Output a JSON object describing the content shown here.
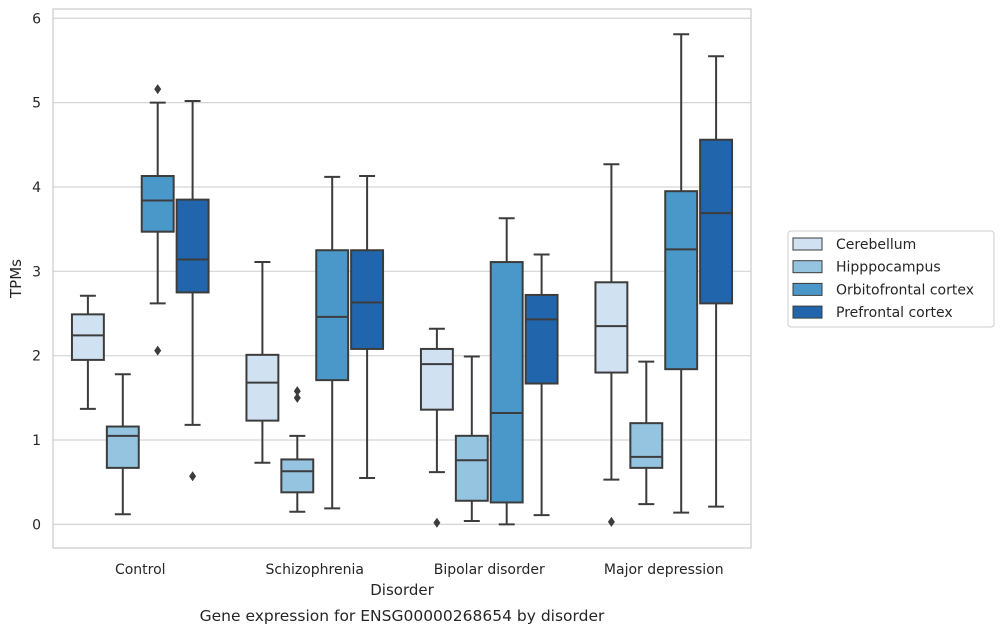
{
  "chart_data": {
    "type": "box",
    "xlabel": "Disorder",
    "ylabel": "TPMs",
    "ylim": [
      -0.28,
      6.11
    ],
    "yticks": [
      0,
      1,
      2,
      3,
      4,
      5,
      6
    ],
    "grid": "horizontal",
    "legend_position": "center-right, outside plot",
    "caption": "Gene expression for ENSG00000268654 by disorder",
    "categories": [
      "Control",
      "Schizophrenia",
      "Bipolar disorder",
      "Major depression"
    ],
    "series": [
      {
        "name": "Cerebellum",
        "color": "#d0e1f2",
        "boxes": [
          {
            "whisker_low": 1.37,
            "q1": 1.95,
            "median": 2.24,
            "q3": 2.49,
            "whisker_high": 2.71,
            "outliers": []
          },
          {
            "whisker_low": 0.73,
            "q1": 1.23,
            "median": 1.68,
            "q3": 2.01,
            "whisker_high": 3.11,
            "outliers": []
          },
          {
            "whisker_low": 0.62,
            "q1": 1.36,
            "median": 1.9,
            "q3": 2.08,
            "whisker_high": 2.32,
            "outliers": [
              0.02
            ]
          },
          {
            "whisker_low": 0.53,
            "q1": 1.8,
            "median": 2.35,
            "q3": 2.87,
            "whisker_high": 4.27,
            "outliers": [
              0.03
            ]
          }
        ]
      },
      {
        "name": "Hipppocampus",
        "color": "#94c4df",
        "boxes": [
          {
            "whisker_low": 0.12,
            "q1": 0.67,
            "median": 1.05,
            "q3": 1.16,
            "whisker_high": 1.78,
            "outliers": []
          },
          {
            "whisker_low": 0.15,
            "q1": 0.38,
            "median": 0.63,
            "q3": 0.77,
            "whisker_high": 1.05,
            "outliers": [
              1.5,
              1.58
            ]
          },
          {
            "whisker_low": 0.04,
            "q1": 0.28,
            "median": 0.76,
            "q3": 1.05,
            "whisker_high": 1.99,
            "outliers": []
          },
          {
            "whisker_low": 0.24,
            "q1": 0.67,
            "median": 0.8,
            "q3": 1.2,
            "whisker_high": 1.93,
            "outliers": []
          }
        ]
      },
      {
        "name": "Orbitofrontal cortex",
        "color": "#4a98c9",
        "boxes": [
          {
            "whisker_low": 2.62,
            "q1": 3.47,
            "median": 3.84,
            "q3": 4.13,
            "whisker_high": 5.0,
            "outliers": [
              2.06,
              5.16
            ]
          },
          {
            "whisker_low": 0.19,
            "q1": 1.71,
            "median": 2.46,
            "q3": 3.25,
            "whisker_high": 4.12,
            "outliers": []
          },
          {
            "whisker_low": 0.0,
            "q1": 0.26,
            "median": 1.32,
            "q3": 3.11,
            "whisker_high": 3.63,
            "outliers": []
          },
          {
            "whisker_low": 0.14,
            "q1": 1.84,
            "median": 3.26,
            "q3": 3.95,
            "whisker_high": 5.81,
            "outliers": []
          }
        ]
      },
      {
        "name": "Prefrontal cortex",
        "color": "#2166ac",
        "boxes": [
          {
            "whisker_low": 1.18,
            "q1": 2.75,
            "median": 3.14,
            "q3": 3.85,
            "whisker_high": 5.02,
            "outliers": [
              0.57
            ]
          },
          {
            "whisker_low": 0.55,
            "q1": 2.08,
            "median": 2.63,
            "q3": 3.25,
            "whisker_high": 4.13,
            "outliers": []
          },
          {
            "whisker_low": 0.11,
            "q1": 1.67,
            "median": 2.43,
            "q3": 2.72,
            "whisker_high": 3.2,
            "outliers": []
          },
          {
            "whisker_low": 0.21,
            "q1": 2.62,
            "median": 3.69,
            "q3": 4.56,
            "whisker_high": 5.55,
            "outliers": []
          }
        ]
      }
    ]
  }
}
